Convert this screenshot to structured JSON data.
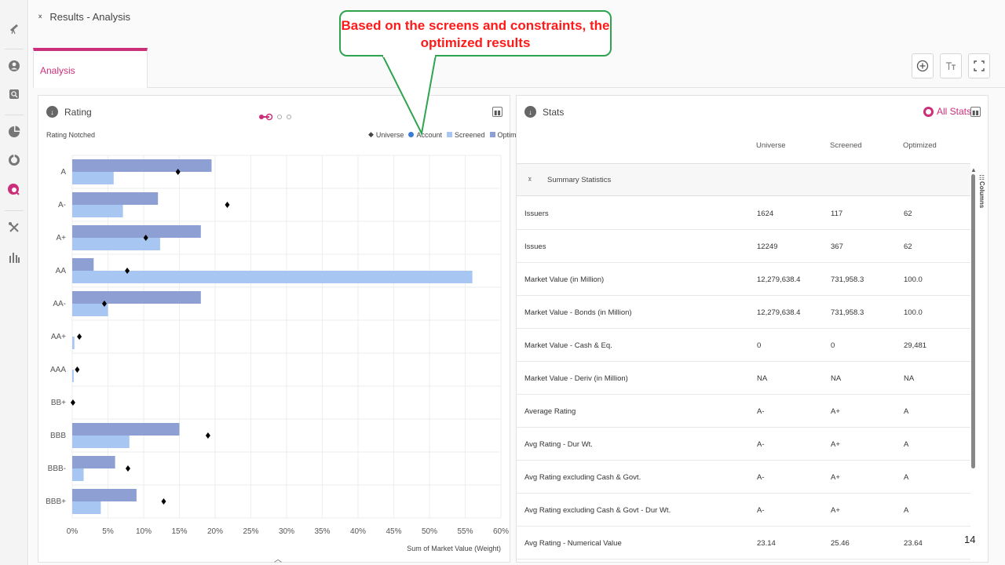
{
  "breadcrumb": {
    "title": "Results - Analysis"
  },
  "tab": {
    "label": "Analysis"
  },
  "toolbar": {
    "add_icon": "plus-circle-icon",
    "text_icon": "text-size-icon",
    "expand_icon": "fullscreen-icon"
  },
  "callout": {
    "text": "Based on the screens and constraints, the optimized results"
  },
  "rating_panel": {
    "title": "Rating",
    "subtitle": "Rating Notched",
    "legend": [
      "Universe",
      "Account",
      "Screened",
      "Optimized"
    ],
    "xlabel": "Sum of Market Value (Weight)"
  },
  "chart_data": {
    "type": "bar",
    "categories": [
      "A",
      "A-",
      "A+",
      "AA",
      "AA-",
      "AA+",
      "AAA",
      "BB+",
      "BBB",
      "BBB-",
      "BBB+"
    ],
    "series": [
      {
        "name": "Optimized",
        "values": [
          19.5,
          12,
          18,
          3,
          18,
          0,
          0,
          0,
          15,
          6,
          9
        ]
      },
      {
        "name": "Screened",
        "values": [
          5.8,
          7.1,
          12.3,
          56,
          5,
          0.3,
          0.2,
          0,
          8,
          1.6,
          4
        ]
      },
      {
        "name": "Universe",
        "values": [
          14.8,
          21.7,
          10.3,
          7.7,
          4.5,
          1,
          0.7,
          0.1,
          19,
          7.8,
          12.8
        ]
      }
    ],
    "xticks": [
      "0%",
      "5%",
      "10%",
      "15%",
      "20%",
      "25%",
      "30%",
      "35%",
      "40%",
      "45%",
      "50%",
      "55%",
      "60%"
    ],
    "xlim": [
      0,
      60
    ],
    "xlabel": "Sum of Market Value (Weight)",
    "colors": {
      "Optimized": "#8e9fd3",
      "Screened": "#a7c6f2",
      "Universe": "#000000",
      "Account": "#3a7bd5"
    }
  },
  "stats_panel": {
    "title": "Stats",
    "all_stats": "All Stats",
    "columns_label": "Columns",
    "headers": [
      "Universe",
      "Screened",
      "Optimized"
    ],
    "section": "Summary Statistics",
    "rows": [
      {
        "label": "Issuers",
        "universe": "1624",
        "screened": "117",
        "optimized": "62"
      },
      {
        "label": "Issues",
        "universe": "12249",
        "screened": "367",
        "optimized": "62"
      },
      {
        "label": "Market Value (in Million)",
        "universe": "12,279,638.4",
        "screened": "731,958.3",
        "optimized": "100.0"
      },
      {
        "label": "Market Value - Bonds (in Million)",
        "universe": "12,279,638.4",
        "screened": "731,958.3",
        "optimized": "100.0"
      },
      {
        "label": "Market Value - Cash & Eq.",
        "universe": "0",
        "screened": "0",
        "optimized": "29,481"
      },
      {
        "label": "Market Value - Deriv (in Million)",
        "universe": "NA",
        "screened": "NA",
        "optimized": "NA"
      },
      {
        "label": "Average Rating",
        "universe": "A-",
        "screened": "A+",
        "optimized": "A"
      },
      {
        "label": "Avg Rating - Dur Wt.",
        "universe": "A-",
        "screened": "A+",
        "optimized": "A"
      },
      {
        "label": "Avg Rating excluding Cash & Govt.",
        "universe": "A-",
        "screened": "A+",
        "optimized": "A"
      },
      {
        "label": "Avg Rating excluding Cash & Govt - Dur Wt.",
        "universe": "A-",
        "screened": "A+",
        "optimized": "A"
      },
      {
        "label": "Avg Rating - Numerical Value",
        "universe": "23.14",
        "screened": "25.46",
        "optimized": "23.64"
      }
    ]
  },
  "slide_number": "14"
}
